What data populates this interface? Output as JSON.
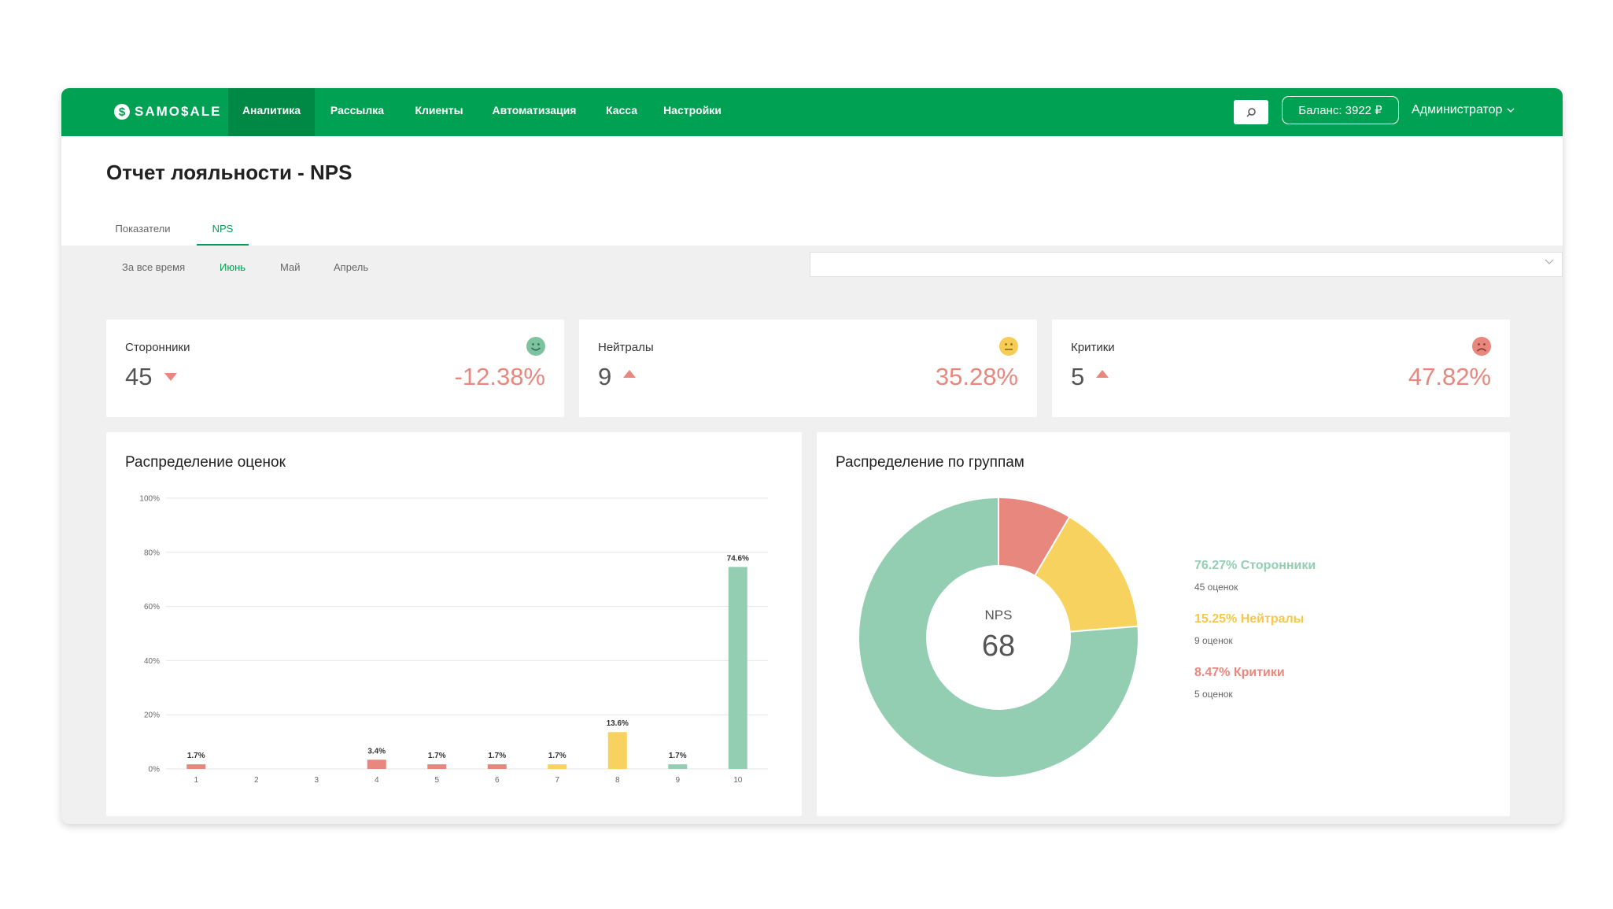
{
  "nav": {
    "logo": "SAMO$ALE",
    "items": [
      {
        "label": "Аналитика",
        "active": true
      },
      {
        "label": "Рассылка",
        "active": false
      },
      {
        "label": "Клиенты",
        "active": false
      },
      {
        "label": "Автоматизация",
        "active": false
      },
      {
        "label": "Касса",
        "active": false
      },
      {
        "label": "Настройки",
        "active": false
      }
    ],
    "search_icon": "search-icon",
    "balance": "Баланс: 3922 ₽",
    "user": "Администратор"
  },
  "page": {
    "title": "Отчет лояльности - NPS",
    "tabs": [
      {
        "label": "Показатели",
        "active": false
      },
      {
        "label": "NPS",
        "active": true
      }
    ],
    "periods": [
      {
        "label": "За все время",
        "active": false
      },
      {
        "label": "Июнь",
        "active": true
      },
      {
        "label": "Май",
        "active": false
      },
      {
        "label": "Апрель",
        "active": false
      }
    ],
    "select_value": ""
  },
  "kpis": [
    {
      "label": "Сторонники",
      "value": "45",
      "trend": "down",
      "change": "-12.38%",
      "icon": "smile-icon",
      "color": "#7dc3a0"
    },
    {
      "label": "Нейтралы",
      "value": "9",
      "trend": "up",
      "change": "35.28%",
      "icon": "neutral-face-icon",
      "color": "#f7cc55"
    },
    {
      "label": "Критики",
      "value": "5",
      "trend": "up",
      "change": "47.82%",
      "icon": "frown-icon",
      "color": "#e8877d"
    }
  ],
  "colors": {
    "brand": "#00a153",
    "promoter": "#93ceb3",
    "neutral": "#f8d25f",
    "critic": "#e8877d",
    "negative_text": "#e8877d"
  },
  "score_chart": {
    "title": "Распределение оценок",
    "chart_data": {
      "type": "bar",
      "categories": [
        "1",
        "2",
        "3",
        "4",
        "5",
        "6",
        "7",
        "8",
        "9",
        "10"
      ],
      "values": [
        1.7,
        0,
        0,
        3.4,
        1.7,
        1.7,
        1.7,
        13.6,
        1.7,
        74.6
      ],
      "labels": [
        "1.7%",
        "",
        "",
        "3.4%",
        "1.7%",
        "1.7%",
        "1.7%",
        "13.6%",
        "1.7%",
        "74.6%"
      ],
      "groups": [
        "critic",
        "critic",
        "critic",
        "critic",
        "critic",
        "critic",
        "neutral",
        "neutral",
        "promoter",
        "promoter"
      ],
      "yticks": [
        "0%",
        "20%",
        "40%",
        "60%",
        "80%",
        "100%"
      ],
      "ylim": [
        0,
        100
      ],
      "grid": true
    }
  },
  "group_chart": {
    "title": "Распределение по группам",
    "center_label": "NPS",
    "center_value": "68",
    "chart_data": {
      "type": "pie",
      "slices": [
        {
          "name": "Критики",
          "value": 8.47,
          "group": "critic"
        },
        {
          "name": "Нейтралы",
          "value": 15.25,
          "group": "neutral"
        },
        {
          "name": "Сторонники",
          "value": 76.27,
          "group": "promoter"
        }
      ]
    },
    "legend": [
      {
        "title": "76.27% Сторонники",
        "sub": "45 оценок",
        "group": "promoter"
      },
      {
        "title": "15.25% Нейтралы",
        "sub": "9 оценок",
        "group": "neutral"
      },
      {
        "title": "8.47% Критики",
        "sub": "5 оценок",
        "group": "critic"
      }
    ]
  }
}
